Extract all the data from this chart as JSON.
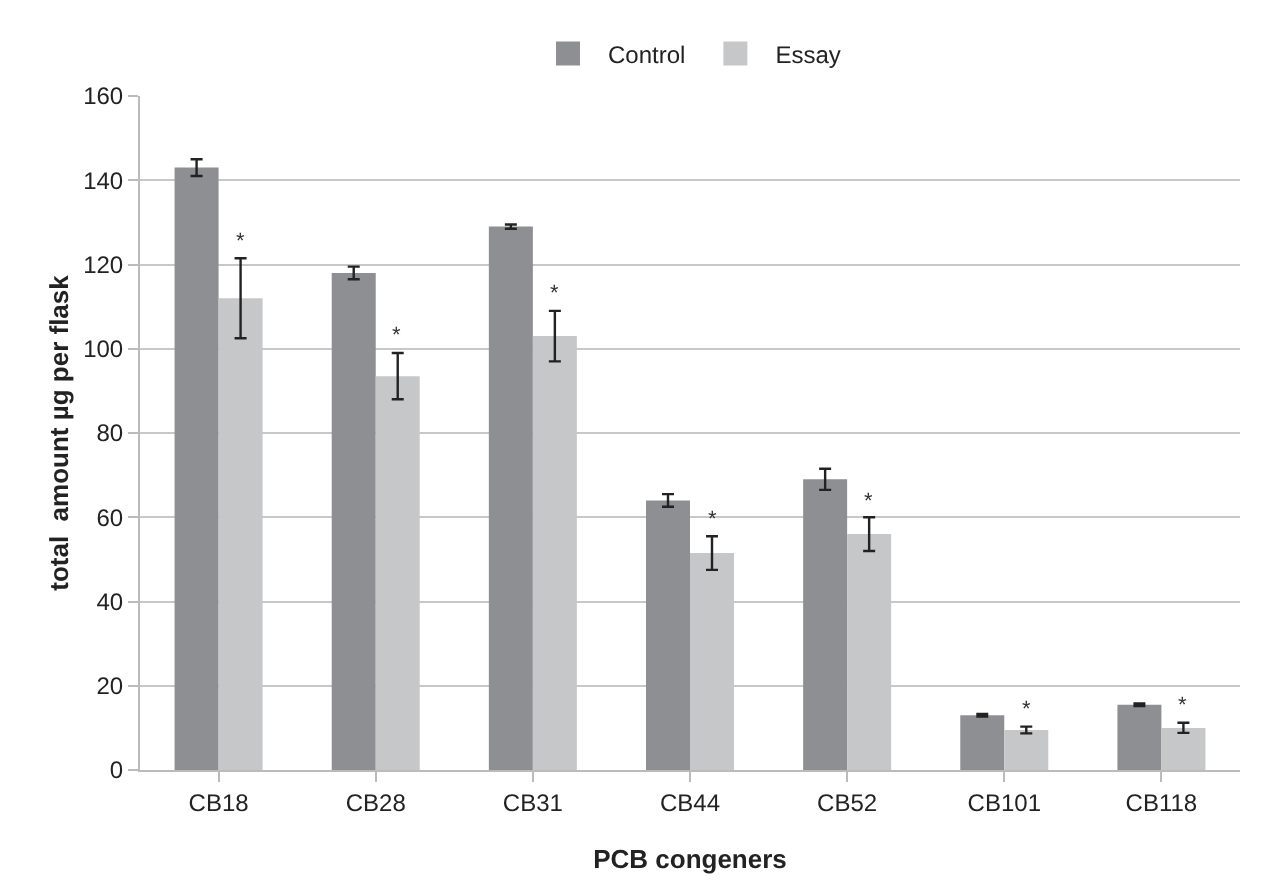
{
  "chart_data": {
    "type": "bar",
    "xlabel": "PCB congeners",
    "ylabel": "total  amount µg per flask",
    "categories": [
      "CB18",
      "CB28",
      "CB31",
      "CB44",
      "CB52",
      "CB101",
      "CB118"
    ],
    "series": [
      {
        "name": "Control",
        "color": "#8e8f93",
        "values": [
          143,
          118,
          129,
          64,
          69,
          13,
          15.5
        ],
        "errors": [
          2,
          1.5,
          0.5,
          1.5,
          2.5,
          0.3,
          0.3
        ]
      },
      {
        "name": "Essay",
        "color": "#c6c7c9",
        "values": [
          112,
          93.5,
          103,
          51.5,
          56,
          9.5,
          10
        ],
        "errors": [
          9.5,
          5.5,
          6,
          4,
          4,
          0.8,
          1.2
        ]
      }
    ],
    "annotations": [
      {
        "text": "*",
        "x": "CB18",
        "y": 121.5
      },
      {
        "text": "*",
        "x": "CB28",
        "y": 99
      },
      {
        "text": "*",
        "x": "CB31",
        "y": 109
      },
      {
        "text": "*",
        "x": "CB44",
        "y": 55.5
      },
      {
        "text": "*",
        "x": "CB52",
        "y": 60
      },
      {
        "text": "*",
        "x": "CB101",
        "y": 10.3
      },
      {
        "text": "*",
        "x": "CB118",
        "y": 11.2
      }
    ],
    "ylim": [
      0,
      160
    ],
    "yticks": [
      0,
      20,
      40,
      60,
      80,
      100,
      120,
      140,
      160
    ],
    "grid": "y",
    "legend": "top"
  }
}
